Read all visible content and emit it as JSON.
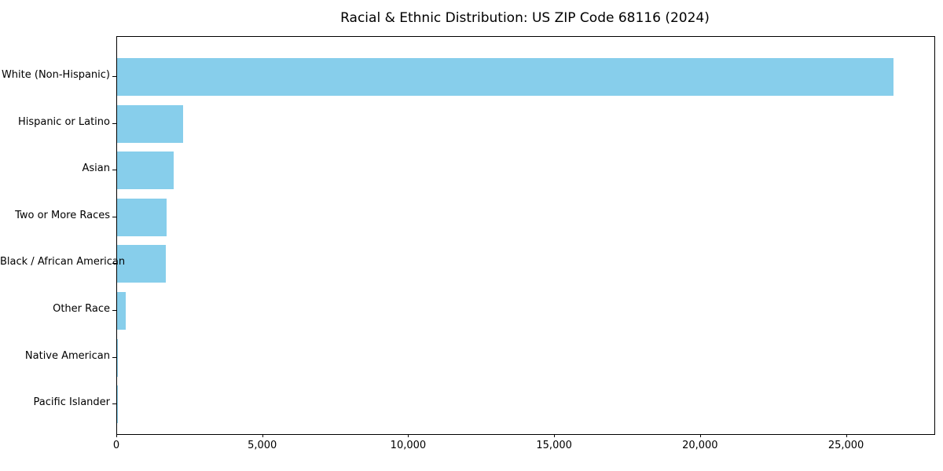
{
  "chart_data": {
    "type": "bar",
    "orientation": "horizontal",
    "title": "Racial & Ethnic Distribution: US ZIP Code 68116 (2024)",
    "categories": [
      "White (Non-Hispanic)",
      "Hispanic or Latino",
      "Asian",
      "Two or More Races",
      "Black / African American",
      "Other Race",
      "Native American",
      "Pacific Islander"
    ],
    "values": [
      26600,
      2250,
      1950,
      1690,
      1670,
      290,
      35,
      8
    ],
    "xlabel": "",
    "ylabel": "",
    "xlim": [
      0,
      28000
    ],
    "xticks": [
      {
        "value": 0,
        "label": "0"
      },
      {
        "value": 5000,
        "label": "5,000"
      },
      {
        "value": 10000,
        "label": "10,000"
      },
      {
        "value": 15000,
        "label": "15,000"
      },
      {
        "value": 20000,
        "label": "20,000"
      },
      {
        "value": 25000,
        "label": "25,000"
      }
    ],
    "bar_color": "#87CEEB",
    "grid": false,
    "legend": null
  }
}
